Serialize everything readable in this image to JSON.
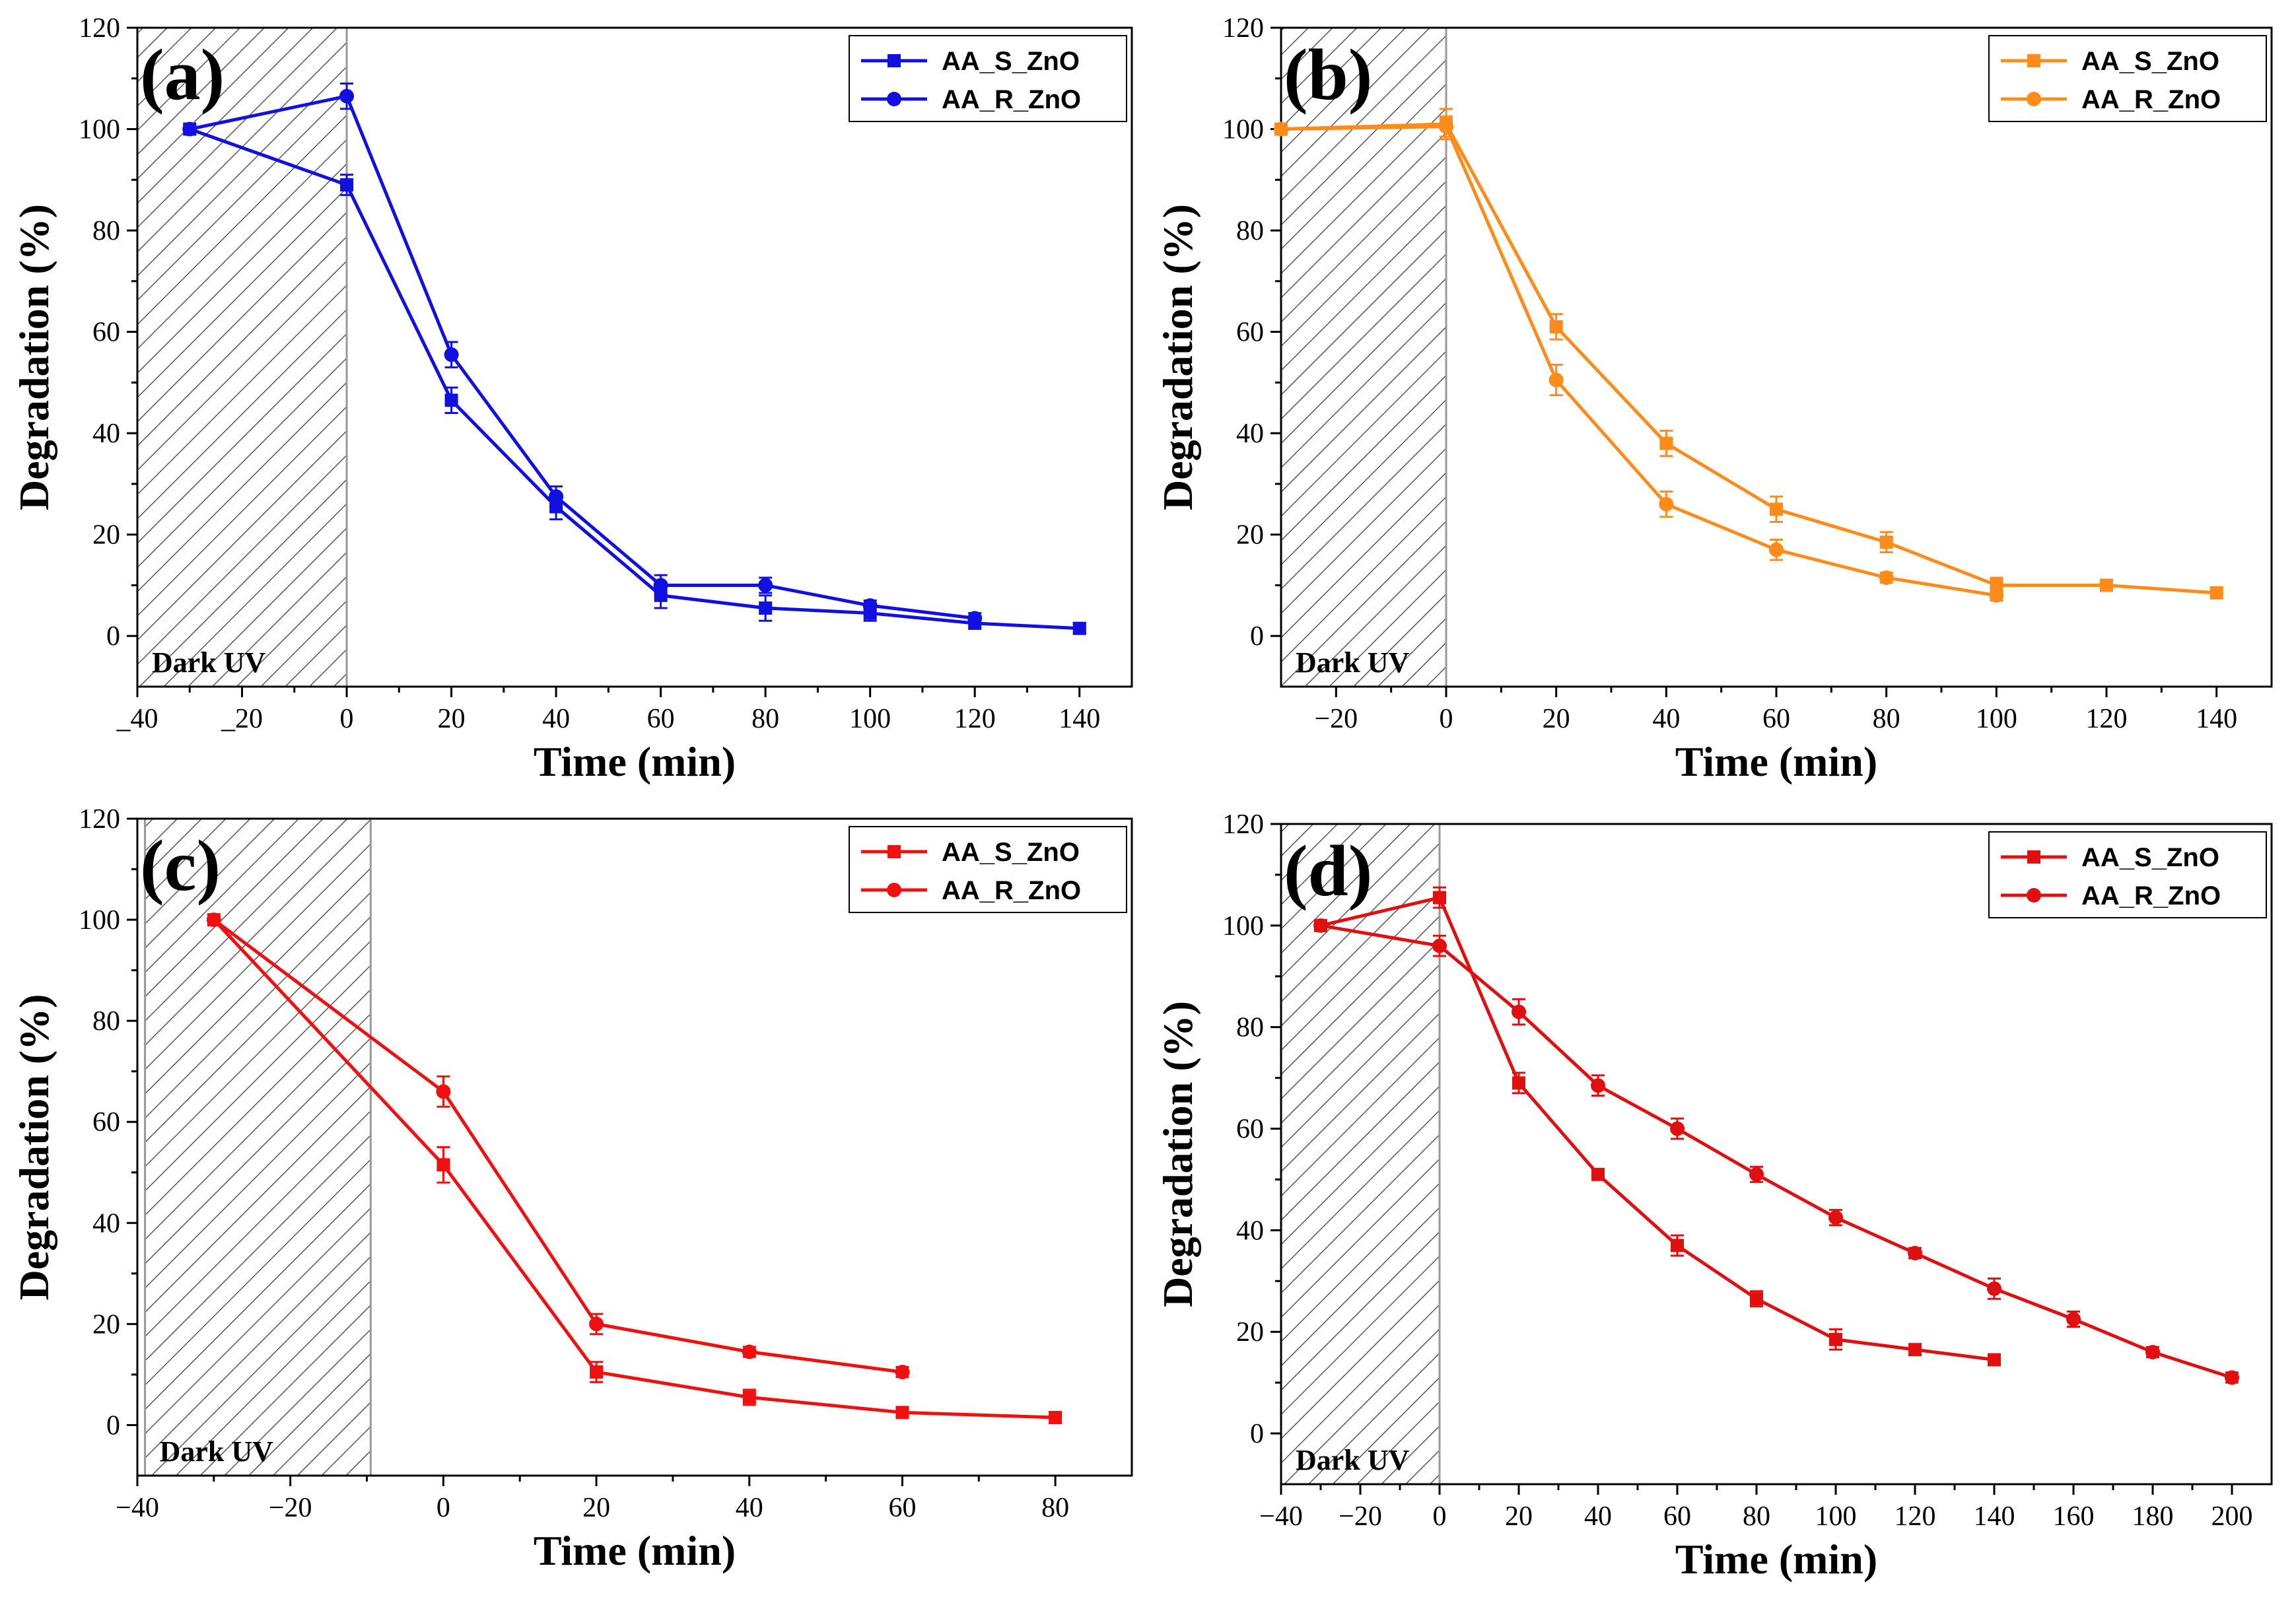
{
  "chart_data": [
    {
      "type": "line",
      "panel_label": "(a)",
      "xlabel": "Time (min)",
      "ylabel": "Degradation (%)",
      "xlim": [
        -40,
        150
      ],
      "ylim": [
        -10,
        120
      ],
      "xticks": [
        -40,
        -20,
        0,
        20,
        40,
        60,
        80,
        100,
        120,
        140
      ],
      "xtick_labels": [
        "_40",
        "_20",
        "0",
        "20",
        "40",
        "60",
        "80",
        "100",
        "120",
        "140"
      ],
      "yticks": [
        0,
        20,
        40,
        60,
        80,
        100,
        120
      ],
      "color": "#1010e0",
      "shade": {
        "from": -40,
        "to": 0,
        "label": "Dark UV"
      },
      "legend_position": "top-right",
      "series": [
        {
          "name": "AA_S_ZnO",
          "marker": "square",
          "x": [
            -30,
            0,
            20,
            40,
            60,
            80,
            100,
            120,
            140
          ],
          "values": [
            100,
            89,
            46.5,
            25.5,
            8,
            5.5,
            4.5,
            2.5,
            1.5
          ],
          "errors": [
            0,
            2,
            2.5,
            2.5,
            2.5,
            2.5,
            1.5,
            1,
            1
          ]
        },
        {
          "name": "AA_R_ZnO",
          "marker": "circle",
          "x": [
            -30,
            0,
            20,
            40,
            60,
            80,
            100,
            120
          ],
          "values": [
            100,
            106.5,
            55.5,
            27.5,
            10,
            10,
            6,
            3.5
          ],
          "errors": [
            0,
            2.5,
            2.5,
            2,
            2,
            1.5,
            1,
            1
          ]
        }
      ]
    },
    {
      "type": "line",
      "panel_label": "(b)",
      "xlabel": "Time (min)",
      "ylabel": "Degradation (%)",
      "xlim": [
        -30,
        150
      ],
      "ylim": [
        -10,
        120
      ],
      "xticks": [
        -20,
        0,
        20,
        40,
        60,
        80,
        100,
        120,
        140
      ],
      "xtick_labels": [
        "−20",
        "0",
        "20",
        "40",
        "60",
        "80",
        "100",
        "120",
        "140"
      ],
      "yticks": [
        0,
        20,
        40,
        60,
        80,
        100,
        120
      ],
      "color": "#ff8c1a",
      "shade": {
        "from": -30,
        "to": 0,
        "label": "Dark UV"
      },
      "legend_position": "top-right",
      "series": [
        {
          "name": "AA_S_ZnO",
          "marker": "square",
          "x": [
            -30,
            0,
            20,
            40,
            60,
            80,
            100,
            120,
            140
          ],
          "values": [
            100,
            101,
            61,
            38,
            25,
            18.5,
            10,
            10,
            8.5
          ],
          "errors": [
            0,
            3,
            2.5,
            2.5,
            2.5,
            2,
            1.5,
            1,
            1
          ]
        },
        {
          "name": "AA_R_ZnO",
          "marker": "circle",
          "x": [
            -30,
            0,
            20,
            40,
            60,
            80,
            100
          ],
          "values": [
            100,
            100.5,
            50.5,
            26,
            17,
            11.5,
            8
          ],
          "errors": [
            0,
            2,
            3,
            2.5,
            2,
            1,
            1
          ]
        }
      ]
    },
    {
      "type": "line",
      "panel_label": "(c)",
      "xlabel": "Time (min)",
      "ylabel": "Degradation (%)",
      "xlim": [
        -40,
        90
      ],
      "ylim": [
        -10,
        120
      ],
      "xticks": [
        -40,
        -20,
        0,
        20,
        40,
        60,
        80
      ],
      "xtick_labels": [
        "−40",
        "−20",
        "0",
        "20",
        "40",
        "60",
        "80"
      ],
      "yticks": [
        0,
        20,
        40,
        60,
        80,
        100,
        120
      ],
      "color": "#f01010",
      "shade": {
        "from": -39,
        "to": -9.5,
        "label": "Dark UV"
      },
      "legend_position": "top-right",
      "series": [
        {
          "name": "AA_S_ZnO",
          "marker": "square",
          "x": [
            -30,
            0,
            20,
            40,
            60,
            80
          ],
          "values": [
            100,
            51.5,
            10.5,
            5.5,
            2.5,
            1.5
          ],
          "errors": [
            0,
            3.5,
            2,
            1.5,
            1,
            1
          ]
        },
        {
          "name": "AA_R_ZnO",
          "marker": "circle",
          "x": [
            -30,
            0,
            20,
            40,
            60
          ],
          "values": [
            100,
            66,
            20,
            14.5,
            10.5
          ],
          "errors": [
            0,
            3,
            2,
            1,
            1
          ]
        }
      ]
    },
    {
      "type": "line",
      "panel_label": "(d)",
      "xlabel": "Time (min)",
      "ylabel": "Degradation (%)",
      "xlim": [
        -40,
        210
      ],
      "ylim": [
        -10,
        120
      ],
      "xticks": [
        -40,
        -20,
        0,
        20,
        40,
        60,
        80,
        100,
        120,
        140,
        160,
        180,
        200
      ],
      "xtick_labels": [
        "−40",
        "−20",
        "0",
        "20",
        "40",
        "60",
        "80",
        "100",
        "120",
        "140",
        "160",
        "180",
        "200"
      ],
      "yticks": [
        0,
        20,
        40,
        60,
        80,
        100,
        120
      ],
      "color": "#e01010",
      "shade": {
        "from": -40,
        "to": 0,
        "label": "Dark UV"
      },
      "legend_position": "top-right",
      "series": [
        {
          "name": "AA_S_ZnO",
          "marker": "square",
          "x": [
            -30,
            0,
            20,
            40,
            60,
            80,
            100,
            120,
            140
          ],
          "values": [
            100,
            105.5,
            69,
            51,
            37,
            26.5,
            18.5,
            16.5,
            14.5
          ],
          "errors": [
            0,
            2,
            2,
            1,
            2,
            1.5,
            2,
            1,
            1
          ]
        },
        {
          "name": "AA_R_ZnO",
          "marker": "circle",
          "x": [
            -30,
            0,
            20,
            40,
            60,
            80,
            100,
            120,
            140,
            160,
            180,
            200
          ],
          "values": [
            100,
            96,
            83,
            68.5,
            60,
            51,
            42.5,
            35.5,
            28.5,
            22.5,
            16,
            11
          ],
          "errors": [
            0,
            2,
            2.5,
            2,
            2,
            1.5,
            1.5,
            1,
            2,
            1.5,
            1,
            1
          ]
        }
      ]
    }
  ]
}
